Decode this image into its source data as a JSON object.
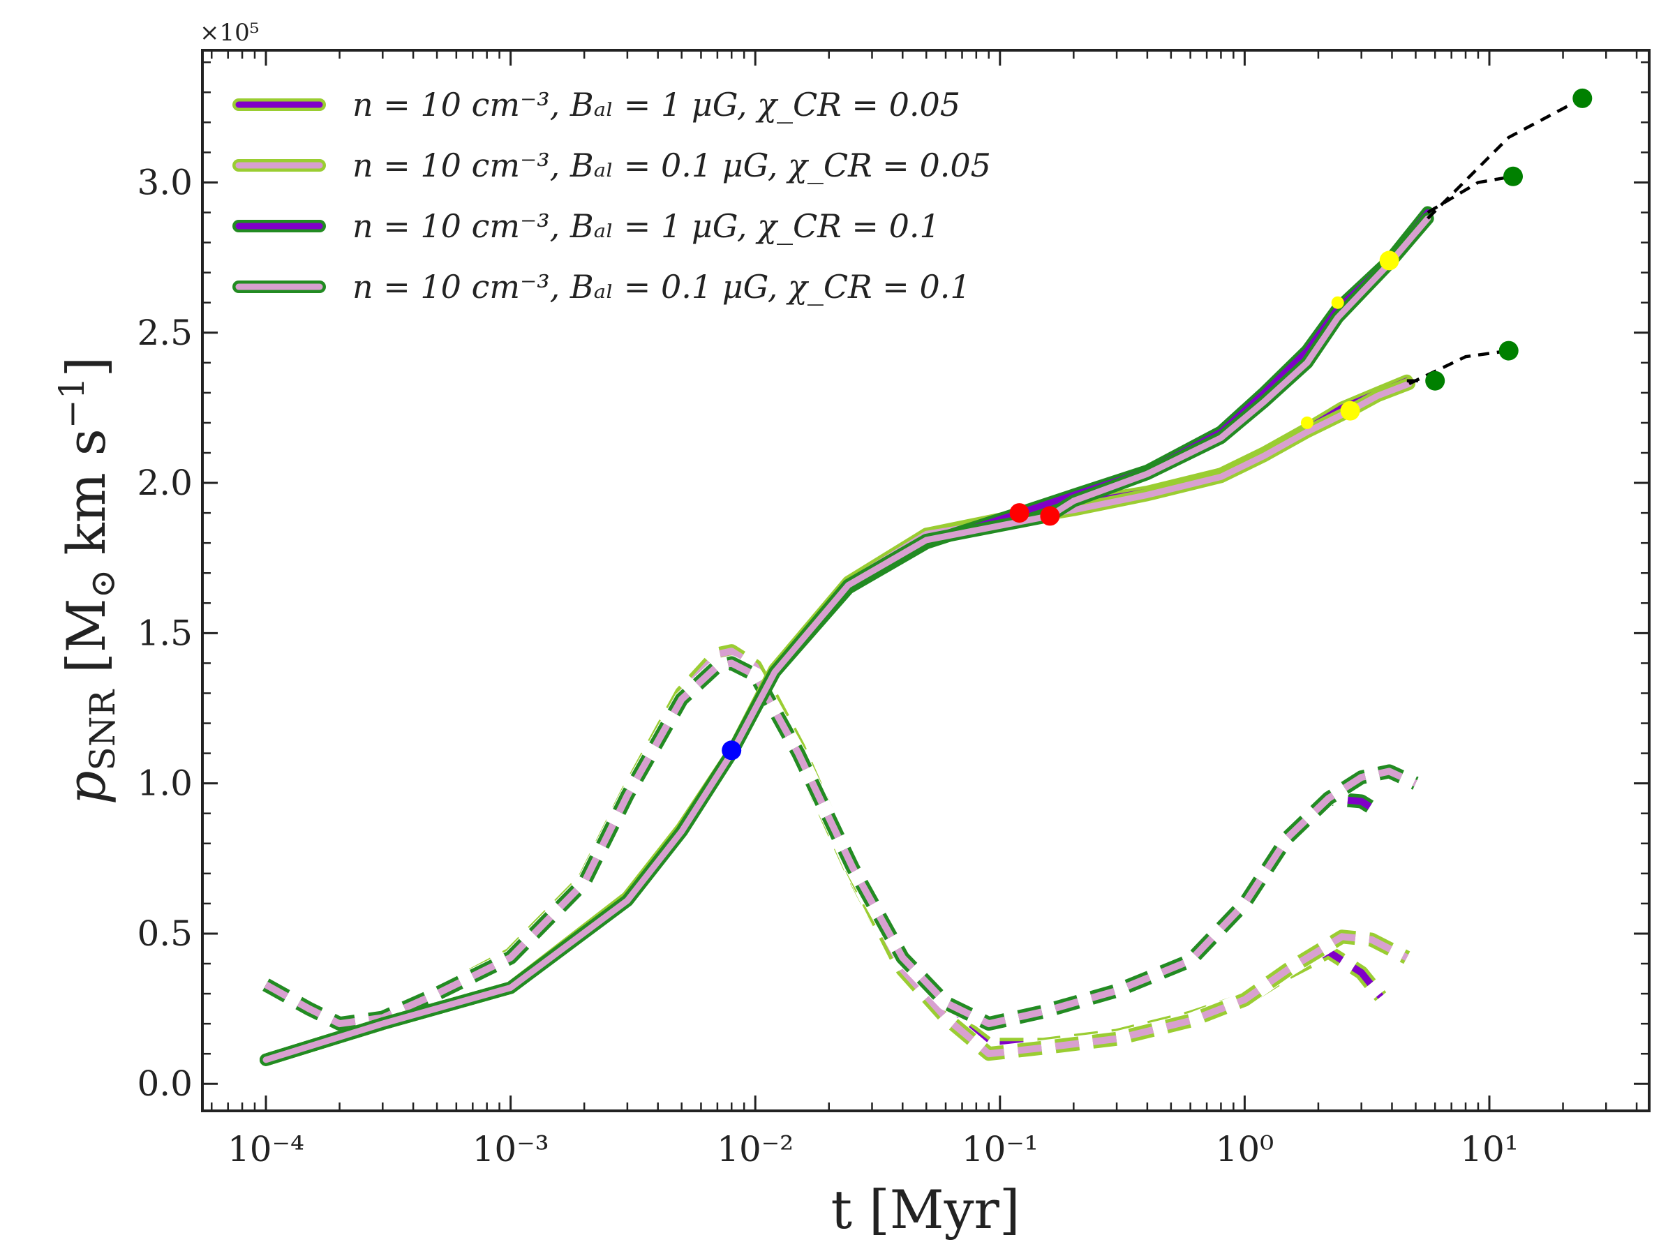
{
  "chart_data": {
    "type": "line",
    "title": "",
    "xlabel": "t [Myr]",
    "ylabel": "p_SNR [M_⊙ km s^-1]",
    "ylabel_main": "p",
    "ylabel_sub": "SNR",
    "ylabel_units": "[M",
    "ylabel_units_sub": "⊙",
    "ylabel_units_tail": "km s",
    "ylabel_units_sup": "−1",
    "ylabel_close": "]",
    "y_multiplier": "×10⁵",
    "x_scale": "log",
    "xlim": [
      5.5e-05,
      45
    ],
    "ylim": [
      -0.09,
      3.44
    ],
    "x_ticks": [
      0.0001,
      0.001,
      0.01,
      0.1,
      1,
      10
    ],
    "x_tick_labels": [
      "10⁻⁴",
      "10⁻³",
      "10⁻²",
      "10⁻¹",
      "10⁰",
      "10¹"
    ],
    "y_ticks": [
      0.0,
      0.5,
      1.0,
      1.5,
      2.0,
      2.5,
      3.0
    ],
    "y_tick_labels": [
      "0.0",
      "0.5",
      "1.0",
      "1.5",
      "2.0",
      "2.5",
      "3.0"
    ],
    "legend_position": "top-left",
    "series": [
      {
        "name": "n = 10 cm⁻³, B_al = 1 μG, χ_CR = 0.05",
        "legend_label": "n = 10 cm⁻³, Bₐₗ = 1 μG, χ_CR = 0.05",
        "inner_color": "#8000c8",
        "outer_color": "#9acd32",
        "solid": {
          "x": [
            0.0001,
            0.0003,
            0.001,
            0.003,
            0.005,
            0.008,
            0.012,
            0.024,
            0.05,
            0.1,
            0.2,
            0.4,
            0.8,
            1.2,
            1.8,
            2.5,
            3.5,
            4.6
          ],
          "y": [
            0.08,
            0.2,
            0.32,
            0.62,
            0.85,
            1.1,
            1.38,
            1.66,
            1.83,
            1.88,
            1.93,
            1.97,
            2.03,
            2.1,
            2.18,
            2.25,
            2.3,
            2.34
          ]
        },
        "dashed": {
          "x": [
            0.0001,
            0.00015,
            0.0002,
            0.0003,
            0.0005,
            0.001,
            0.002,
            0.003,
            0.005,
            0.007,
            0.008,
            0.01,
            0.015,
            0.025,
            0.04,
            0.06,
            0.09,
            0.15,
            0.3,
            0.6,
            1.0,
            1.5,
            2.2,
            3.0,
            3.6
          ],
          "y": [
            0.33,
            0.25,
            0.2,
            0.22,
            0.3,
            0.42,
            0.67,
            0.96,
            1.28,
            1.4,
            1.41,
            1.37,
            1.1,
            0.7,
            0.38,
            0.24,
            0.13,
            0.13,
            0.16,
            0.22,
            0.28,
            0.37,
            0.44,
            0.37,
            0.29
          ]
        },
        "continuation": {
          "x": [
            4.6,
            6.0
          ],
          "y": [
            2.34,
            2.34
          ]
        },
        "markers": [
          {
            "x": 1.8,
            "y": 2.2,
            "color": "#ffff00",
            "size": "small"
          },
          {
            "x": 6.0,
            "y": 2.34,
            "color": "#008000",
            "size": "large"
          }
        ]
      },
      {
        "name": "n = 10 cm⁻³, B_al = 0.1 μG, χ_CR = 0.05",
        "legend_label": "n = 10 cm⁻³, Bₐₗ = 0.1 μG, χ_CR = 0.05",
        "inner_color": "#d8a0d0",
        "outer_color": "#9acd32",
        "solid": {
          "x": [
            0.0001,
            0.0003,
            0.001,
            0.003,
            0.005,
            0.008,
            0.012,
            0.024,
            0.05,
            0.1,
            0.2,
            0.4,
            0.8,
            1.2,
            1.8,
            2.7,
            3.5,
            4.7
          ],
          "y": [
            0.08,
            0.2,
            0.32,
            0.62,
            0.85,
            1.1,
            1.38,
            1.67,
            1.83,
            1.87,
            1.91,
            1.96,
            2.02,
            2.09,
            2.17,
            2.24,
            2.29,
            2.33
          ]
        },
        "dashed": {
          "x": [
            0.0001,
            0.00015,
            0.0002,
            0.0003,
            0.0005,
            0.001,
            0.002,
            0.003,
            0.005,
            0.007,
            0.008,
            0.01,
            0.015,
            0.025,
            0.04,
            0.06,
            0.09,
            0.15,
            0.3,
            0.6,
            1.0,
            1.5,
            2.5,
            3.3,
            4.6
          ],
          "y": [
            0.33,
            0.25,
            0.2,
            0.22,
            0.3,
            0.43,
            0.68,
            0.97,
            1.3,
            1.43,
            1.44,
            1.39,
            1.12,
            0.71,
            0.38,
            0.22,
            0.1,
            0.12,
            0.15,
            0.21,
            0.28,
            0.38,
            0.49,
            0.48,
            0.42
          ]
        },
        "continuation": {
          "x": [
            4.7,
            8.0,
            12.0
          ],
          "y": [
            2.33,
            2.42,
            2.44
          ]
        },
        "markers": [
          {
            "x": 2.7,
            "y": 2.24,
            "color": "#ffff00",
            "size": "large"
          },
          {
            "x": 12.0,
            "y": 2.44,
            "color": "#008000",
            "size": "large"
          }
        ]
      },
      {
        "name": "n = 10 cm⁻³, B_al = 1 μG, χ_CR = 0.1",
        "legend_label": "n = 10 cm⁻³, Bₐₗ = 1 μG, χ_CR = 0.1",
        "inner_color": "#8000c8",
        "outer_color": "#228b22",
        "solid": {
          "x": [
            0.0001,
            0.0003,
            0.001,
            0.003,
            0.005,
            0.008,
            0.012,
            0.024,
            0.05,
            0.12,
            0.2,
            0.4,
            0.8,
            1.2,
            1.8,
            2.4,
            3.9,
            5.6
          ],
          "y": [
            0.08,
            0.2,
            0.32,
            0.61,
            0.84,
            1.1,
            1.37,
            1.65,
            1.8,
            1.9,
            1.96,
            2.04,
            2.17,
            2.3,
            2.44,
            2.58,
            2.74,
            2.9
          ]
        },
        "dashed": {
          "x": [
            0.0001,
            0.00015,
            0.0002,
            0.0003,
            0.0005,
            0.001,
            0.002,
            0.003,
            0.005,
            0.007,
            0.008,
            0.01,
            0.015,
            0.025,
            0.04,
            0.06,
            0.09,
            0.15,
            0.3,
            0.6,
            1.0,
            1.5,
            2.2,
            3.0,
            3.6
          ],
          "y": [
            0.33,
            0.25,
            0.2,
            0.22,
            0.3,
            0.42,
            0.67,
            0.96,
            1.28,
            1.39,
            1.4,
            1.36,
            1.1,
            0.72,
            0.42,
            0.27,
            0.2,
            0.24,
            0.31,
            0.41,
            0.6,
            0.82,
            0.95,
            0.94,
            0.9
          ]
        },
        "continuation": {
          "x": [
            5.6,
            9.0,
            12.5
          ],
          "y": [
            2.9,
            3.0,
            3.02
          ]
        },
        "markers": [
          {
            "x": 2.4,
            "y": 2.6,
            "color": "#ffff00",
            "size": "small"
          },
          {
            "x": 0.12,
            "y": 1.9,
            "color": "#ff0000",
            "size": "large"
          },
          {
            "x": 12.5,
            "y": 3.02,
            "color": "#008000",
            "size": "large"
          }
        ]
      },
      {
        "name": "n = 10 cm⁻³, B_al = 0.1 μG, χ_CR = 0.1",
        "legend_label": "n = 10 cm⁻³, Bₐₗ = 0.1 μG, χ_CR = 0.1",
        "inner_color": "#d8a0d0",
        "outer_color": "#228b22",
        "solid": {
          "x": [
            0.0001,
            0.0003,
            0.001,
            0.003,
            0.005,
            0.008,
            0.012,
            0.024,
            0.05,
            0.16,
            0.2,
            0.4,
            0.8,
            1.2,
            1.8,
            2.4,
            3.9,
            5.6
          ],
          "y": [
            0.08,
            0.2,
            0.32,
            0.61,
            0.84,
            1.1,
            1.37,
            1.66,
            1.81,
            1.89,
            1.94,
            2.03,
            2.15,
            2.27,
            2.4,
            2.55,
            2.73,
            2.88
          ]
        },
        "dashed": {
          "x": [
            0.0001,
            0.00015,
            0.0002,
            0.0003,
            0.0005,
            0.001,
            0.002,
            0.003,
            0.005,
            0.007,
            0.008,
            0.01,
            0.015,
            0.025,
            0.04,
            0.06,
            0.09,
            0.15,
            0.3,
            0.6,
            1.0,
            1.5,
            2.2,
            3.0,
            3.9,
            5.0
          ],
          "y": [
            0.33,
            0.25,
            0.2,
            0.22,
            0.3,
            0.42,
            0.67,
            0.96,
            1.28,
            1.39,
            1.4,
            1.36,
            1.1,
            0.72,
            0.42,
            0.27,
            0.2,
            0.24,
            0.31,
            0.41,
            0.6,
            0.82,
            0.95,
            1.02,
            1.04,
            1.0
          ]
        },
        "continuation": {
          "x": [
            5.6,
            12.0,
            24.0
          ],
          "y": [
            2.88,
            3.15,
            3.28
          ]
        },
        "markers": [
          {
            "x": 3.9,
            "y": 2.74,
            "color": "#ffff00",
            "size": "large"
          },
          {
            "x": 0.16,
            "y": 1.89,
            "color": "#ff0000",
            "size": "large"
          },
          {
            "x": 24.0,
            "y": 3.28,
            "color": "#008000",
            "size": "large"
          }
        ]
      }
    ],
    "extra_markers": [
      {
        "x": 0.008,
        "y": 1.11,
        "color": "#0000ff",
        "size": "large"
      }
    ]
  }
}
